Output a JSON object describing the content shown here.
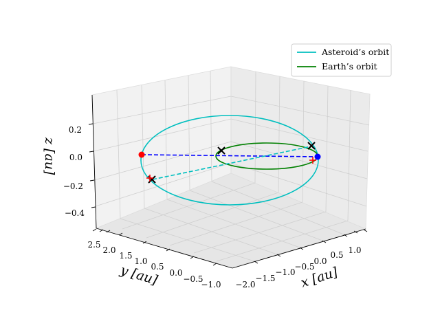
{
  "chart_data": {
    "type": "line3d",
    "title": "",
    "xlabel": "x [au]",
    "ylabel": "y [au]",
    "zlabel": "z [au]",
    "xlim": [
      -2.2,
      1.3
    ],
    "ylim": [
      -1.2,
      2.7
    ],
    "zlim": [
      -0.5,
      0.35
    ],
    "x_ticks": [
      "−2.0",
      "−1.5",
      "−1.0",
      "−0.5",
      "0.0",
      "0.5",
      "1.0"
    ],
    "y_ticks": [
      "−1.0",
      "−0.5",
      "0.0",
      "0.5",
      "1.0",
      "1.5",
      "2.0",
      "2.5"
    ],
    "z_ticks": [
      "−0.4",
      "−0.2",
      "0.0",
      "0.2"
    ],
    "legend_position": "upper-right",
    "series": [
      {
        "name": "Asteroid's orbit",
        "label": "Asteroid’s orbit",
        "color": "#00bfbf",
        "shape": "ellipse",
        "center_xy": [
          -0.45,
          0.8
        ],
        "semi_axes": [
          1.6,
          1.6
        ],
        "inclination_z": 0.15
      },
      {
        "name": "Earth's orbit",
        "label": "Earth’s orbit",
        "color": "#008000",
        "shape": "circle",
        "center_xy": [
          0,
          0
        ],
        "radius": 1.0,
        "inclination_z": 0.0
      }
    ],
    "markers": [
      {
        "name": "asteroid-point-red",
        "color": "#ff0000",
        "symbol": "dot",
        "x": -1.6,
        "y": 1.9,
        "z": 0.0
      },
      {
        "name": "earth-point-blue",
        "color": "#0000ff",
        "symbol": "dot",
        "x": 0.95,
        "y": -0.3,
        "z": 0.0
      },
      {
        "name": "cross-near-earth-left",
        "color": "#000000",
        "symbol": "x",
        "x": -0.6,
        "y": 0.6,
        "z": 0.03
      },
      {
        "name": "cross-near-earth-right",
        "color": "#000000",
        "symbol": "x",
        "x": 0.75,
        "y": -0.6,
        "z": 0.05
      },
      {
        "name": "cross-lower-left",
        "color": "#000000",
        "symbol": "x",
        "x": -1.2,
        "y": 2.1,
        "z": -0.17
      },
      {
        "name": "plus-lower-left",
        "color": "#ff0000",
        "symbol": "+",
        "x": -1.25,
        "y": 2.05,
        "z": -0.16
      },
      {
        "name": "plus-right",
        "color": "#ff0000",
        "symbol": "+",
        "x": 0.85,
        "y": -0.45,
        "z": -0.02
      }
    ],
    "lines": [
      {
        "name": "blue-dashed-line",
        "color": "#0000ff",
        "style": "dashed",
        "from": "asteroid-point-red",
        "to": "earth-point-blue"
      },
      {
        "name": "cyan-dashed-line",
        "color": "#00bfbf",
        "style": "dashed",
        "from": "cross-lower-left",
        "to": "cross-near-earth-right"
      }
    ]
  }
}
